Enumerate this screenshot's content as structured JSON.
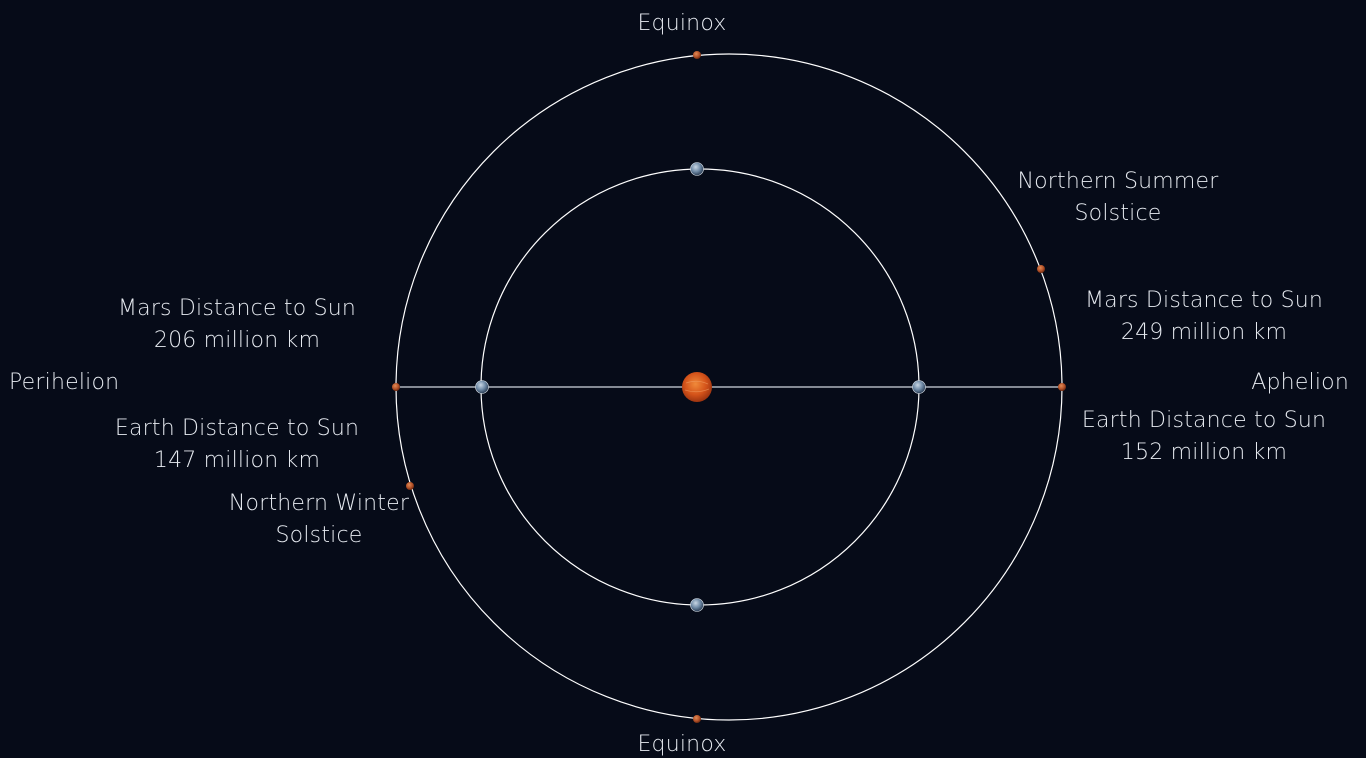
{
  "labels": {
    "equinox_top": "Equinox",
    "equinox_bottom": "Equinox",
    "perihelion": "Perihelion",
    "aphelion": "Aphelion",
    "northern_summer_solstice": [
      "Northern Summer",
      "Solstice"
    ],
    "northern_winter_solstice": [
      "Northern Winter",
      "Solstice"
    ],
    "mars_perihelion_distance": [
      "Mars Distance to Sun",
      "206 million km"
    ],
    "earth_perihelion_distance": [
      "Earth Distance to Sun",
      "147 million km"
    ],
    "mars_aphelion_distance": [
      "Mars Distance to Sun",
      "249 million km"
    ],
    "earth_aphelion_distance": [
      "Earth Distance to Sun",
      "152 million km"
    ]
  },
  "colors": {
    "background": "#060b18",
    "orbit_line": "#ffffff",
    "text": "#e6eaf0",
    "sun": "#d4531a",
    "mars": "#b5532a",
    "earth": "#8fa3b8"
  },
  "icons": {
    "sun": "sun-icon",
    "earth": "earth-icon",
    "mars": "mars-icon"
  }
}
